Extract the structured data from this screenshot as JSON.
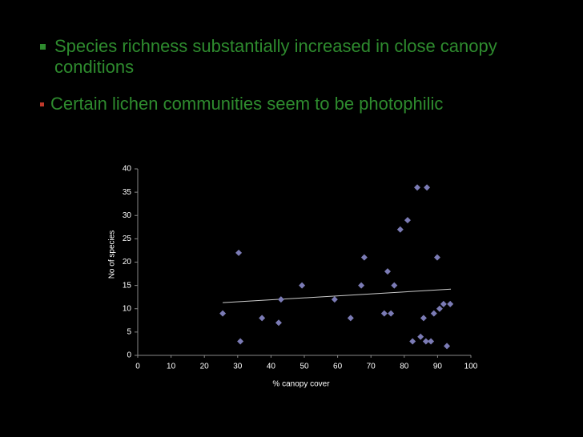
{
  "bullets": [
    {
      "text": "Species richness substantially increased in close canopy conditions"
    },
    {
      "text": "Certain lichen communities seem to be photophilic"
    }
  ],
  "chart_data": {
    "type": "scatter",
    "x_label": "% canopy cover",
    "y_label": "No of species",
    "x": [
      25.5,
      30.3,
      30.8,
      37.3,
      42.3,
      43,
      49.3,
      59.1,
      63.9,
      67.1,
      68,
      74,
      75,
      76,
      77,
      78.8,
      81,
      82.5,
      83.9,
      84.9,
      85.8,
      86.5,
      86.8,
      88,
      88.9,
      89.9,
      90.6,
      91.8,
      92.8,
      93.8
    ],
    "values": [
      9,
      22,
      3,
      8,
      7,
      12,
      15,
      12,
      8,
      15,
      21,
      9,
      18,
      9,
      15,
      27,
      29,
      3,
      36,
      4,
      8,
      3,
      36,
      3,
      9,
      21,
      10,
      11,
      2,
      11
    ],
    "color": "#7b7bb5",
    "trendline": {
      "x": [
        25.5,
        94
      ],
      "y": [
        11.3,
        14.2
      ],
      "color": "#cccccc"
    },
    "xlim": [
      0,
      100
    ],
    "ylim": [
      0,
      40
    ],
    "xticks": [
      0,
      10,
      20,
      30,
      40,
      50,
      60,
      70,
      80,
      90,
      100
    ],
    "yticks": [
      0,
      5,
      10,
      15,
      20,
      25,
      30,
      35,
      40
    ]
  }
}
